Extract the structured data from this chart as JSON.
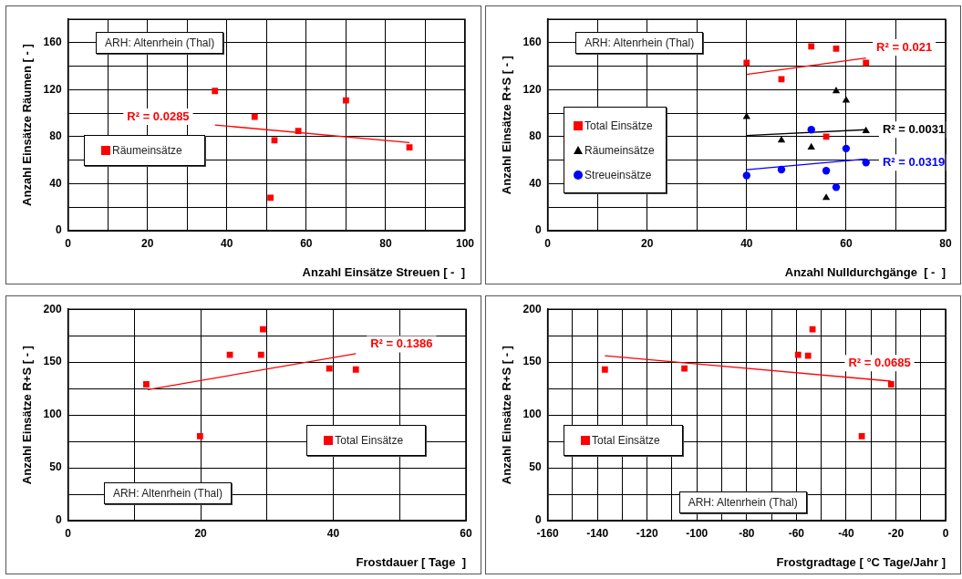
{
  "chart_data": [
    {
      "type": "scatter",
      "xlabel": "Anzahl Einsätze Streuen [ -  ]",
      "ylabel": "Anzahl Einsätze Räumen [ - ]",
      "xlim": [
        0,
        100
      ],
      "xticks": [
        0,
        {
          "value": 10,
          "label": null
        },
        20,
        {
          "value": 30,
          "label": null
        },
        40,
        {
          "value": 50,
          "label": null
        },
        60,
        {
          "value": 70,
          "label": null
        },
        80,
        {
          "value": 90,
          "label": null
        },
        100
      ],
      "ylim": [
        0,
        180
      ],
      "yticks": [
        0,
        {
          "value": 20,
          "label": null
        },
        40,
        {
          "value": 60,
          "label": null
        },
        80,
        {
          "value": 100,
          "label": null
        },
        120,
        {
          "value": 140,
          "label": null
        },
        160
      ],
      "grid": true,
      "legend": "left",
      "series": [
        {
          "name": "Räumeinsätze",
          "color": "#ff0000",
          "marker": "square",
          "x": [
            37,
            47,
            52,
            51,
            58,
            70,
            86
          ],
          "values": [
            119,
            97,
            77,
            28,
            85,
            111,
            71
          ]
        },
        {
          "type": "line",
          "color": "#ff0000",
          "marker": "none",
          "x": [
            37,
            86
          ],
          "values": [
            90,
            75
          ]
        }
      ],
      "annotations": [
        "ARH: Altenrhein (Thal)",
        "R² = 0.0285"
      ]
    },
    {
      "type": "scatter",
      "xlabel": "Anzahl Nulldurchgänge  [ -  ]",
      "ylabel": "Anzahl Einsätze R+S [ - ]",
      "xlim": [
        0,
        80
      ],
      "xticks": [
        0,
        {
          "value": 10,
          "label": null
        },
        20,
        {
          "value": 30,
          "label": null
        },
        40,
        {
          "value": 50,
          "label": null
        },
        60,
        {
          "value": 70,
          "label": null
        },
        80
      ],
      "ylim": [
        0,
        180
      ],
      "yticks": [
        0,
        {
          "value": 20,
          "label": null
        },
        40,
        {
          "value": 60,
          "label": null
        },
        80,
        {
          "value": 100,
          "label": null
        },
        120,
        {
          "value": 140,
          "label": null
        },
        160
      ],
      "grid": true,
      "legend": "left",
      "series": [
        {
          "name": "Total Einsätze",
          "color": "#ff0000",
          "marker": "square",
          "x": [
            40,
            47,
            53,
            56,
            58,
            64
          ],
          "values": [
            143,
            129,
            157,
            80,
            155,
            143
          ]
        },
        {
          "name": "Räumeinsätze",
          "color": "#000000",
          "marker": "triangle",
          "x": [
            40,
            47,
            53,
            56,
            58,
            60,
            64
          ],
          "values": [
            97,
            77,
            71,
            28,
            119,
            111,
            85
          ]
        },
        {
          "name": "Streueinsätze",
          "color": "#0000ff",
          "marker": "circle",
          "x": [
            40,
            47,
            53,
            56,
            58,
            60,
            64
          ],
          "values": [
            47,
            52,
            86,
            51,
            37,
            70,
            58
          ]
        },
        {
          "type": "line",
          "color": "#ff0000",
          "marker": "none",
          "x": [
            40,
            64
          ],
          "values": [
            133,
            147
          ]
        },
        {
          "type": "line",
          "color": "#000000",
          "marker": "none",
          "x": [
            40,
            64
          ],
          "values": [
            81,
            86
          ]
        },
        {
          "type": "line",
          "color": "#0000ff",
          "marker": "none",
          "x": [
            40,
            64
          ],
          "values": [
            52,
            61
          ]
        }
      ],
      "annotations": [
        "ARH: Altenrhein (Thal)",
        "R² = 0.021",
        "R² = 0.0031",
        "R² = 0.0319"
      ]
    },
    {
      "type": "scatter",
      "xlabel": "Frostdauer [ Tage  ]",
      "ylabel": "Anzahl Einsätze R+S [ - ]",
      "xlim": [
        0,
        60
      ],
      "xticks": [
        0,
        {
          "value": 10,
          "label": null
        },
        20,
        {
          "value": 30,
          "label": null
        },
        40,
        {
          "value": 50,
          "label": null
        },
        60
      ],
      "ylim": [
        0,
        200
      ],
      "yticks": [
        0,
        {
          "value": 25,
          "label": null
        },
        50,
        {
          "value": 75,
          "label": null
        },
        100,
        {
          "value": 125,
          "label": null
        },
        150,
        {
          "value": 175,
          "label": null
        },
        200
      ],
      "grid": true,
      "legend": "right",
      "series": [
        {
          "name": "Total Einsätze",
          "color": "#ff0000",
          "marker": "square",
          "x": [
            11.8,
            19.9,
            24.4,
            29.1,
            29.4,
            39.4,
            43.4
          ],
          "values": [
            129,
            80,
            157,
            157,
            181,
            144,
            143
          ]
        },
        {
          "type": "line",
          "color": "#ff0000",
          "marker": "none",
          "x": [
            12,
            43.4
          ],
          "values": [
            124,
            158
          ]
        }
      ],
      "annotations": [
        "ARH: Altenrhein (Thal)",
        "R² = 0.1386"
      ]
    },
    {
      "type": "scatter",
      "xlabel": "Frostgradtage [ °C Tage/Jahr ]",
      "ylabel": "Anzahl Einsätze R+S [ - ]",
      "xlim": [
        -160,
        0
      ],
      "xticks": [
        -160,
        {
          "value": -150,
          "label": null
        },
        -140,
        {
          "value": -130,
          "label": null
        },
        -120,
        {
          "value": -110,
          "label": null
        },
        -100,
        {
          "value": -90,
          "label": null
        },
        -80,
        {
          "value": -70,
          "label": null
        },
        -60,
        {
          "value": -50,
          "label": null
        },
        -40,
        {
          "value": -30,
          "label": null
        },
        -20,
        {
          "value": -10,
          "label": null
        },
        0
      ],
      "ylim": [
        0,
        200
      ],
      "yticks": [
        0,
        {
          "value": 25,
          "label": null
        },
        50,
        {
          "value": 75,
          "label": null
        },
        100,
        {
          "value": 125,
          "label": null
        },
        150,
        {
          "value": 175,
          "label": null
        },
        200
      ],
      "grid": true,
      "legend": "left",
      "series": [
        {
          "name": "Total Einsätze",
          "color": "#ff0000",
          "marker": "square",
          "x": [
            -137,
            -105,
            -59.3,
            -55.3,
            -53.5,
            -33.7,
            -21.9
          ],
          "values": [
            143,
            144,
            157,
            156,
            181,
            80,
            129
          ]
        },
        {
          "type": "line",
          "color": "#ff0000",
          "marker": "none",
          "x": [
            -137,
            -22
          ],
          "values": [
            156,
            132
          ]
        }
      ],
      "annotations": [
        "ARH: Altenrhein (Thal)",
        "R² = 0.0685"
      ]
    }
  ]
}
